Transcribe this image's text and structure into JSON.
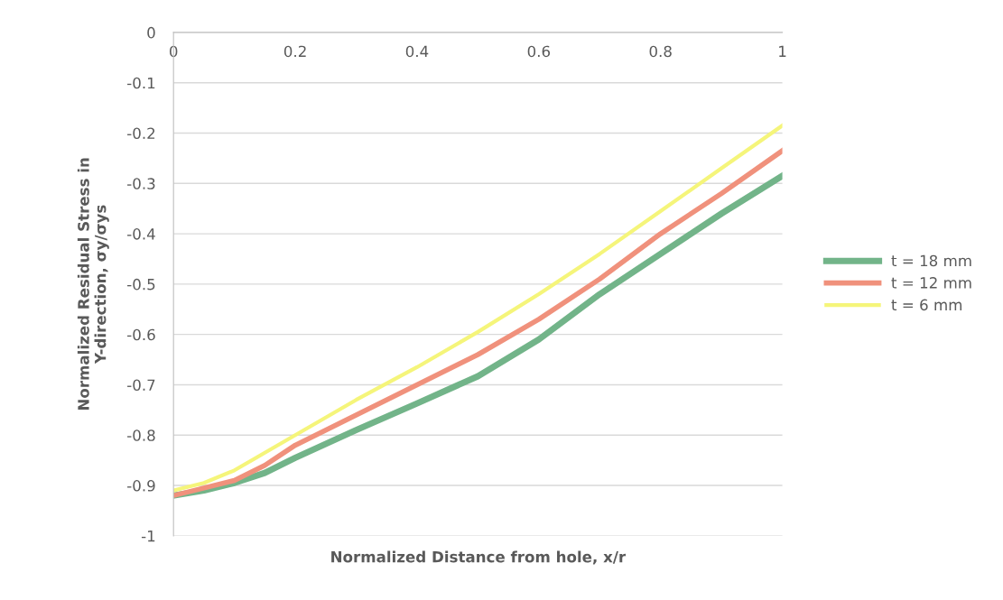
{
  "chart_data": {
    "type": "line",
    "xlabel": "Normalized Distance from hole, x/r",
    "ylabel": "Normalized Residual Stress in\nY-direction, σy/σys",
    "x": [
      0,
      0.05,
      0.1,
      0.15,
      0.2,
      0.3,
      0.4,
      0.5,
      0.6,
      0.7,
      0.8,
      0.9,
      1
    ],
    "series": [
      {
        "name": "t = 18 mm",
        "color": "#72b489",
        "values": [
          -0.92,
          -0.91,
          -0.895,
          -0.875,
          -0.845,
          -0.79,
          -0.737,
          -0.683,
          -0.61,
          -0.52,
          -0.44,
          -0.36,
          -0.285
        ]
      },
      {
        "name": "t = 12 mm",
        "color": "#f0917c",
        "values": [
          -0.92,
          -0.905,
          -0.89,
          -0.86,
          -0.82,
          -0.76,
          -0.7,
          -0.64,
          -0.57,
          -0.49,
          -0.4,
          -0.32,
          -0.235
        ]
      },
      {
        "name": "t = 6 mm",
        "color": "#f5f57a",
        "values": [
          -0.91,
          -0.895,
          -0.87,
          -0.835,
          -0.8,
          -0.73,
          -0.665,
          -0.595,
          -0.52,
          -0.44,
          -0.355,
          -0.27,
          -0.185
        ]
      }
    ],
    "xlim": [
      0,
      1
    ],
    "xticks": [
      0,
      0.2,
      0.4,
      0.6,
      0.8,
      1
    ],
    "ylim": [
      -1,
      0
    ],
    "yticks": [
      0,
      -0.1,
      -0.2,
      -0.3,
      -0.4,
      -0.5,
      -0.6,
      -0.7,
      -0.8,
      -0.9,
      -1
    ],
    "grid": "y",
    "legend": "right",
    "marker": "none",
    "line_style": "solid"
  }
}
